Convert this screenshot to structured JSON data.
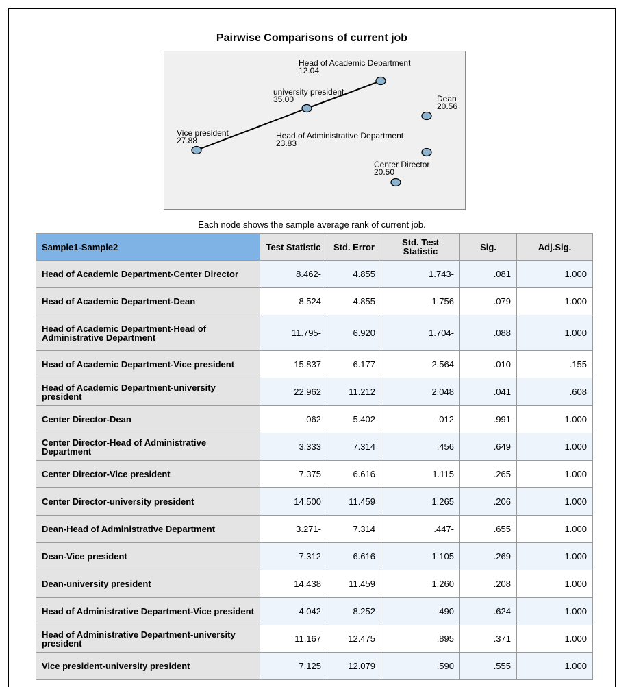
{
  "title": "Pairwise Comparisons of current job",
  "caption": "Each node shows the sample average rank of current job.",
  "nodes": [
    {
      "id": "head-academic",
      "name": "Head of Academic Department",
      "rank": "12.04"
    },
    {
      "id": "univ-president",
      "name": "university president",
      "rank": "35.00"
    },
    {
      "id": "dean",
      "name": "Dean",
      "rank": "20.56"
    },
    {
      "id": "vice-president",
      "name": "Vice president",
      "rank": "27.88"
    },
    {
      "id": "head-admin",
      "name": "Head of Administrative Department",
      "rank": "23.83"
    },
    {
      "id": "center-director",
      "name": "Center Director",
      "rank": "20.50"
    }
  ],
  "edges": [
    {
      "from": "vice-president",
      "to": "univ-president"
    },
    {
      "from": "univ-president",
      "to": "head-academic"
    }
  ],
  "table": {
    "headers": [
      "Sample1-Sample2",
      "Test Statistic",
      "Std. Error",
      "Std. Test Statistic",
      "Sig.",
      "Adj.Sig."
    ],
    "rows": [
      [
        "Head of Academic Department-Center Director",
        "8.462-",
        "4.855",
        "1.743-",
        ".081",
        "1.000"
      ],
      [
        "Head of Academic Department-Dean",
        "8.524",
        "4.855",
        "1.756",
        ".079",
        "1.000"
      ],
      [
        "Head of Academic Department-Head of Administrative Department",
        "11.795-",
        "6.920",
        "1.704-",
        ".088",
        "1.000"
      ],
      [
        "Head of Academic Department-Vice president",
        "15.837",
        "6.177",
        "2.564",
        ".010",
        ".155"
      ],
      [
        "Head of Academic Department-university president",
        "22.962",
        "11.212",
        "2.048",
        ".041",
        ".608"
      ],
      [
        "Center Director-Dean",
        ".062",
        "5.402",
        ".012",
        ".991",
        "1.000"
      ],
      [
        "Center Director-Head of Administrative Department",
        "3.333",
        "7.314",
        ".456",
        ".649",
        "1.000"
      ],
      [
        "Center Director-Vice president",
        "7.375",
        "6.616",
        "1.115",
        ".265",
        "1.000"
      ],
      [
        "Center Director-university president",
        "14.500",
        "11.459",
        "1.265",
        ".206",
        "1.000"
      ],
      [
        "Dean-Head of Administrative Department",
        "3.271-",
        "7.314",
        ".447-",
        ".655",
        "1.000"
      ],
      [
        "Dean-Vice president",
        "7.312",
        "6.616",
        "1.105",
        ".269",
        "1.000"
      ],
      [
        "Dean-university president",
        "14.438",
        "11.459",
        "1.260",
        ".208",
        "1.000"
      ],
      [
        "Head of Administrative Department-Vice president",
        "4.042",
        "8.252",
        ".490",
        ".624",
        "1.000"
      ],
      [
        "Head of Administrative Department-university president",
        "11.167",
        "12.475",
        ".895",
        ".371",
        "1.000"
      ],
      [
        "Vice president-university president",
        "7.125",
        "12.079",
        ".590",
        ".555",
        "1.000"
      ]
    ]
  }
}
